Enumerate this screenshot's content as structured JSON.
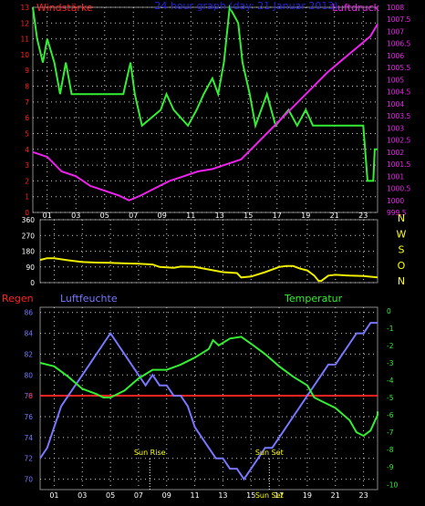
{
  "panel1": {
    "title_left": "Windstärke",
    "title_center": "24 hour graph (day: 21 Januar 2013)",
    "title_right": "Luftdruck",
    "y_left_ticks": [
      "13",
      "12",
      "11",
      "10",
      "9",
      "8",
      "7",
      "6",
      "5",
      "4",
      "3",
      "2",
      "1",
      "0"
    ],
    "y_right_ticks": [
      "1008",
      "1007.5",
      "1007",
      "1006.5",
      "1006",
      "1005.5",
      "1005",
      "1004.5",
      "1004",
      "1003.5",
      "1003",
      "1002.5",
      "1002",
      "1001.5",
      "1001",
      "1000.5",
      "1000",
      "999.5"
    ]
  },
  "panel2": {
    "y_ticks": [
      "360",
      "270",
      "180",
      "90",
      "0"
    ],
    "compass": [
      "N",
      "W",
      "S",
      "O",
      "N"
    ]
  },
  "panel3": {
    "label_rain": "Regen",
    "label_humidity": "Luftfeuchte",
    "label_temp": "Temperatur",
    "y_left_ticks": [
      "86",
      "84",
      "82",
      "80",
      "78",
      "76",
      "74",
      "72",
      "70"
    ],
    "y_right_ticks": [
      "0",
      "-1",
      "-2",
      "-3",
      "-4",
      "-5",
      "-6",
      "-7",
      "-8",
      "-9",
      "-10"
    ],
    "rain_mark": "0",
    "sunrise_label": "Sun Rise",
    "sunset_label": "Sun Set",
    "sunset_axis_label": "Sun Set"
  },
  "x_ticks": [
    "01",
    "03",
    "05",
    "07",
    "09",
    "11",
    "13",
    "15",
    "17",
    "19",
    "21",
    "23"
  ],
  "colors": {
    "wind": "#33ee33",
    "pressure": "#ee22ee",
    "direction": "#eeee00",
    "humidity": "#7777ff",
    "temperature": "#33ee33",
    "rain": "#ff2222",
    "frame": "#888888",
    "grid": "#cccccc",
    "title_center": "#2222dd",
    "compass": "#ffff00"
  },
  "chart_data": [
    {
      "type": "line",
      "title": "24 hour graph (day: 21 Januar 2013)",
      "x_unit": "hour",
      "xlim": [
        0,
        24
      ],
      "series": [
        {
          "name": "Windstärke",
          "axis": "left",
          "ylim": [
            0,
            13
          ],
          "points": [
            [
              0,
              13
            ],
            [
              0.3,
              11
            ],
            [
              0.7,
              9.5
            ],
            [
              1,
              11
            ],
            [
              1.5,
              9.5
            ],
            [
              1.9,
              7.5
            ],
            [
              2.3,
              9.5
            ],
            [
              2.7,
              7.5
            ],
            [
              6.3,
              7.5
            ],
            [
              6.8,
              9.5
            ],
            [
              7.1,
              7.5
            ],
            [
              7.6,
              5.5
            ],
            [
              8.9,
              6.5
            ],
            [
              9.3,
              7.5
            ],
            [
              9.8,
              6.5
            ],
            [
              10.8,
              5.5
            ],
            [
              11.4,
              6.5
            ],
            [
              11.9,
              7.5
            ],
            [
              12.5,
              8.5
            ],
            [
              12.9,
              7.5
            ],
            [
              13.3,
              9.5
            ],
            [
              13.7,
              13
            ],
            [
              14.3,
              12
            ],
            [
              14.6,
              9.5
            ],
            [
              15.1,
              7.5
            ],
            [
              15.5,
              5.5
            ],
            [
              16.3,
              7.5
            ],
            [
              16.9,
              5.5
            ],
            [
              17.8,
              6.5
            ],
            [
              18.4,
              5.5
            ],
            [
              19,
              6.5
            ],
            [
              19.5,
              5.5
            ],
            [
              23,
              5.5
            ],
            [
              23.3,
              2
            ],
            [
              23.7,
              2
            ],
            [
              23.8,
              4
            ],
            [
              24,
              4
            ]
          ]
        },
        {
          "name": "Luftdruck",
          "axis": "right",
          "ylim": [
            999.5,
            1008
          ],
          "points": [
            [
              0,
              1002
            ],
            [
              1,
              1001.8
            ],
            [
              2,
              1001.2
            ],
            [
              3,
              1001
            ],
            [
              4,
              1000.6
            ],
            [
              5,
              1000.4
            ],
            [
              6,
              1000.2
            ],
            [
              6.7,
              1000
            ],
            [
              7.5,
              1000.2
            ],
            [
              8.5,
              1000.5
            ],
            [
              9.5,
              1000.8
            ],
            [
              10.5,
              1001
            ],
            [
              11.5,
              1001.2
            ],
            [
              12.5,
              1001.3
            ],
            [
              13.5,
              1001.5
            ],
            [
              14.5,
              1001.7
            ],
            [
              15.5,
              1002.3
            ],
            [
              16.5,
              1002.9
            ],
            [
              17.5,
              1003.5
            ],
            [
              18.5,
              1004.1
            ],
            [
              19.5,
              1004.7
            ],
            [
              20.5,
              1005.3
            ],
            [
              21.5,
              1005.8
            ],
            [
              22.5,
              1006.3
            ],
            [
              23.5,
              1006.8
            ],
            [
              24,
              1007.3
            ]
          ]
        }
      ]
    },
    {
      "type": "line",
      "xlim": [
        0,
        24
      ],
      "ylim": [
        0,
        360
      ],
      "series": [
        {
          "name": "Windrichtung",
          "points": [
            [
              0,
              130
            ],
            [
              0.5,
              140
            ],
            [
              1,
              140
            ],
            [
              2,
              128
            ],
            [
              3,
              118
            ],
            [
              4,
              115
            ],
            [
              5,
              113
            ],
            [
              6,
              110
            ],
            [
              7,
              108
            ],
            [
              8,
              104
            ],
            [
              8.5,
              90
            ],
            [
              9.5,
              85
            ],
            [
              10,
              92
            ],
            [
              11,
              90
            ],
            [
              12,
              75
            ],
            [
              13,
              60
            ],
            [
              14,
              55
            ],
            [
              14.3,
              30
            ],
            [
              15,
              35
            ],
            [
              16,
              60
            ],
            [
              17,
              90
            ],
            [
              17.5,
              95
            ],
            [
              18,
              95
            ],
            [
              18.5,
              80
            ],
            [
              19,
              70
            ],
            [
              19.5,
              40
            ],
            [
              19.8,
              10
            ],
            [
              20,
              10
            ],
            [
              20.5,
              40
            ],
            [
              21,
              45
            ],
            [
              22,
              40
            ],
            [
              23,
              38
            ],
            [
              24,
              30
            ]
          ]
        }
      ]
    },
    {
      "type": "line",
      "xlim": [
        0,
        24
      ],
      "series": [
        {
          "name": "Luftfeuchte",
          "axis": "left",
          "ylim": [
            69,
            86.5
          ],
          "points": [
            [
              0,
              72
            ],
            [
              0.5,
              73
            ],
            [
              1,
              75
            ],
            [
              1.5,
              77
            ],
            [
              2,
              78
            ],
            [
              2.5,
              79
            ],
            [
              3,
              80
            ],
            [
              3.5,
              81
            ],
            [
              4,
              82
            ],
            [
              4.5,
              83
            ],
            [
              5,
              84
            ],
            [
              5.5,
              83
            ],
            [
              6,
              82
            ],
            [
              6.5,
              81
            ],
            [
              7,
              80
            ],
            [
              7.5,
              79
            ],
            [
              8,
              80
            ],
            [
              8.5,
              79
            ],
            [
              9,
              79
            ],
            [
              9.5,
              78
            ],
            [
              10,
              78
            ],
            [
              10.5,
              77
            ],
            [
              11,
              75
            ],
            [
              11.5,
              74
            ],
            [
              12,
              73
            ],
            [
              12.5,
              72
            ],
            [
              13,
              72
            ],
            [
              13.5,
              71
            ],
            [
              14,
              71
            ],
            [
              14.5,
              70
            ],
            [
              15,
              71
            ],
            [
              15.5,
              72
            ],
            [
              16,
              73
            ],
            [
              16.5,
              73
            ],
            [
              17,
              74
            ],
            [
              17.5,
              75
            ],
            [
              18,
              76
            ],
            [
              18.5,
              77
            ],
            [
              19,
              78
            ],
            [
              19.5,
              79
            ],
            [
              20,
              80
            ],
            [
              20.5,
              81
            ],
            [
              21,
              81
            ],
            [
              21.5,
              82
            ],
            [
              22,
              83
            ],
            [
              22.5,
              84
            ],
            [
              23,
              84
            ],
            [
              23.5,
              85
            ],
            [
              24,
              85
            ]
          ]
        },
        {
          "name": "Temperatur",
          "axis": "right",
          "ylim": [
            -10.3,
            0.2
          ],
          "points": [
            [
              0,
              -3.0
            ],
            [
              1,
              -3.2
            ],
            [
              2,
              -3.8
            ],
            [
              3,
              -4.5
            ],
            [
              4,
              -4.8
            ],
            [
              4.5,
              -5.0
            ],
            [
              5,
              -5.0
            ],
            [
              6,
              -4.6
            ],
            [
              7,
              -3.9
            ],
            [
              8,
              -3.4
            ],
            [
              9,
              -3.4
            ],
            [
              10,
              -3.1
            ],
            [
              11,
              -2.7
            ],
            [
              12,
              -2.2
            ],
            [
              12.3,
              -1.7
            ],
            [
              12.7,
              -2.0
            ],
            [
              13.5,
              -1.6
            ],
            [
              14.3,
              -1.5
            ],
            [
              15,
              -1.9
            ],
            [
              16,
              -2.5
            ],
            [
              17,
              -3.2
            ],
            [
              18,
              -3.8
            ],
            [
              19,
              -4.3
            ],
            [
              19.5,
              -5.0
            ],
            [
              20,
              -5.2
            ],
            [
              21,
              -5.6
            ],
            [
              22,
              -6.3
            ],
            [
              22.5,
              -7.0
            ],
            [
              23,
              -7.2
            ],
            [
              23.5,
              -6.9
            ],
            [
              24,
              -6.0
            ],
            [
              24.3,
              -5.8
            ]
          ]
        },
        {
          "name": "Regen",
          "axis": "left",
          "points": [
            [
              0,
              0
            ],
            [
              24,
              0
            ]
          ]
        }
      ],
      "annotations": [
        "Sun Rise",
        "Sun Set"
      ],
      "sunrise_hour": 7.8,
      "sunset_hour": 16.3
    }
  ]
}
